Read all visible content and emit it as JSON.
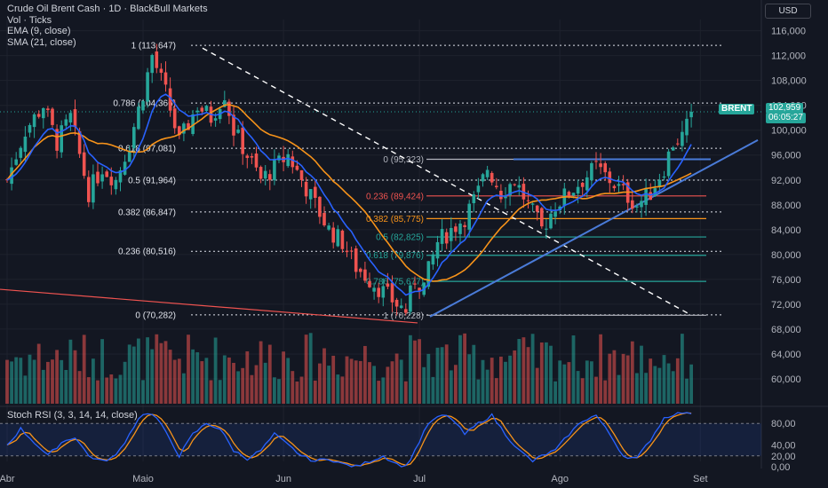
{
  "header": {
    "title": "Crude Oil Brent Cash · 1D · BlackBull Markets",
    "indicators": [
      "Vol · Ticks",
      "EMA (9, close)",
      "SMA (21, close)"
    ],
    "currency": "USD"
  },
  "price_tag": {
    "symbol": "BRENT",
    "price": "102,959",
    "countdown": "06:05:27"
  },
  "stoch_label": "Stoch RSI (3, 3, 14, 14, close)",
  "colors": {
    "bg": "#131722",
    "up": "#26a69a",
    "down": "#ef5350",
    "ema": "#2962ff",
    "sma": "#f7931a",
    "trend": "#4a7bd8",
    "fib_ext": "#26a69a"
  },
  "chart_data": {
    "type": "candlestick",
    "x_labels": [
      {
        "label": "Abr",
        "day": 0
      },
      {
        "label": "Maio",
        "day": 30
      },
      {
        "label": "Jun",
        "day": 61
      },
      {
        "label": "Jul",
        "day": 91
      },
      {
        "label": "Ago",
        "day": 122
      },
      {
        "label": "Set",
        "day": 153
      }
    ],
    "y_ticks": [
      "116,000",
      "112,000",
      "108,000",
      "104,000",
      "100,000",
      "96,000",
      "92,000",
      "88,000",
      "84,000",
      "80,000",
      "76,000",
      "72,000",
      "68,000",
      "64,000",
      "60,000"
    ],
    "ylim": [
      56000,
      117800
    ],
    "last_price": 102959,
    "fib_retracement": [
      {
        "label": "1 (113,647)",
        "value": 113647
      },
      {
        "label": "0.786 (104,366)",
        "value": 104366
      },
      {
        "label": "0.618 (97,081)",
        "value": 97081
      },
      {
        "label": "0.5 (91,964)",
        "value": 91964
      },
      {
        "label": "0.382 (86,847)",
        "value": 86847
      },
      {
        "label": "0.236 (80,516)",
        "value": 80516
      },
      {
        "label": "0 (70,282)",
        "value": 70282
      }
    ],
    "fib_extension": [
      {
        "label": "0 (95,323)",
        "value": 95323,
        "color": "#b2b5be"
      },
      {
        "label": "0.236 (89,424)",
        "value": 89424,
        "color": "#ef5350"
      },
      {
        "label": "0.382 (85,775)",
        "value": 85775,
        "color": "#f7931a"
      },
      {
        "label": "0.5 (82,825)",
        "value": 82825,
        "color": "#26a69a"
      },
      {
        "label": "0.618 (79,876)",
        "value": 79876,
        "color": "#26a69a"
      },
      {
        "label": "0.786 (75,677)",
        "value": 75677,
        "color": "#26a69a"
      },
      {
        "label": "1 (70,228)",
        "value": 70228,
        "color": "#b2b5be"
      }
    ],
    "close_anchors": [
      [
        0,
        92000
      ],
      [
        4,
        100000
      ],
      [
        8,
        104000
      ],
      [
        11,
        98000
      ],
      [
        14,
        102000
      ],
      [
        18,
        90000
      ],
      [
        21,
        94000
      ],
      [
        24,
        92000
      ],
      [
        27,
        98000
      ],
      [
        30,
        106000
      ],
      [
        32,
        112000
      ],
      [
        35,
        106000
      ],
      [
        38,
        98000
      ],
      [
        42,
        104000
      ],
      [
        45,
        102000
      ],
      [
        48,
        106000
      ],
      [
        50,
        100000
      ],
      [
        53,
        96000
      ],
      [
        56,
        92000
      ],
      [
        59,
        94000
      ],
      [
        62,
        96000
      ],
      [
        65,
        92000
      ],
      [
        68,
        88000
      ],
      [
        71,
        84000
      ],
      [
        74,
        82000
      ],
      [
        77,
        78000
      ],
      [
        80,
        76000
      ],
      [
        83,
        74000
      ],
      [
        86,
        72000
      ],
      [
        88,
        71000
      ],
      [
        90,
        76000
      ],
      [
        92,
        75000
      ],
      [
        95,
        82000
      ],
      [
        98,
        84000
      ],
      [
        101,
        86000
      ],
      [
        104,
        90000
      ],
      [
        106,
        94000
      ],
      [
        109,
        90000
      ],
      [
        112,
        92000
      ],
      [
        115,
        88000
      ],
      [
        118,
        84000
      ],
      [
        121,
        88000
      ],
      [
        124,
        90000
      ],
      [
        127,
        92000
      ],
      [
        130,
        94000
      ],
      [
        133,
        92000
      ],
      [
        136,
        90000
      ],
      [
        139,
        88000
      ],
      [
        142,
        90000
      ],
      [
        145,
        94000
      ],
      [
        147,
        98000
      ],
      [
        149,
        99000
      ],
      [
        151,
        102000
      ]
    ],
    "stoch_ticks": [
      "80,00",
      "40,00",
      "20,00",
      "0,00"
    ],
    "stoch_k_anchors": [
      [
        0,
        40
      ],
      [
        3,
        70
      ],
      [
        6,
        45
      ],
      [
        9,
        20
      ],
      [
        12,
        45
      ],
      [
        15,
        55
      ],
      [
        18,
        20
      ],
      [
        21,
        10
      ],
      [
        24,
        20
      ],
      [
        27,
        60
      ],
      [
        29,
        90
      ],
      [
        31,
        100
      ],
      [
        33,
        90
      ],
      [
        36,
        50
      ],
      [
        38,
        20
      ],
      [
        41,
        60
      ],
      [
        44,
        80
      ],
      [
        47,
        70
      ],
      [
        50,
        30
      ],
      [
        53,
        15
      ],
      [
        56,
        30
      ],
      [
        59,
        60
      ],
      [
        62,
        40
      ],
      [
        65,
        20
      ],
      [
        68,
        10
      ],
      [
        71,
        15
      ],
      [
        74,
        5
      ],
      [
        77,
        0
      ],
      [
        80,
        10
      ],
      [
        83,
        20
      ],
      [
        86,
        5
      ],
      [
        88,
        0
      ],
      [
        90,
        30
      ],
      [
        93,
        80
      ],
      [
        96,
        95
      ],
      [
        98,
        90
      ],
      [
        101,
        60
      ],
      [
        104,
        80
      ],
      [
        107,
        95
      ],
      [
        110,
        60
      ],
      [
        113,
        30
      ],
      [
        116,
        10
      ],
      [
        118,
        20
      ],
      [
        121,
        30
      ],
      [
        124,
        60
      ],
      [
        127,
        85
      ],
      [
        130,
        95
      ],
      [
        133,
        60
      ],
      [
        136,
        20
      ],
      [
        139,
        15
      ],
      [
        142,
        50
      ],
      [
        145,
        90
      ],
      [
        148,
        100
      ],
      [
        151,
        100
      ]
    ]
  }
}
